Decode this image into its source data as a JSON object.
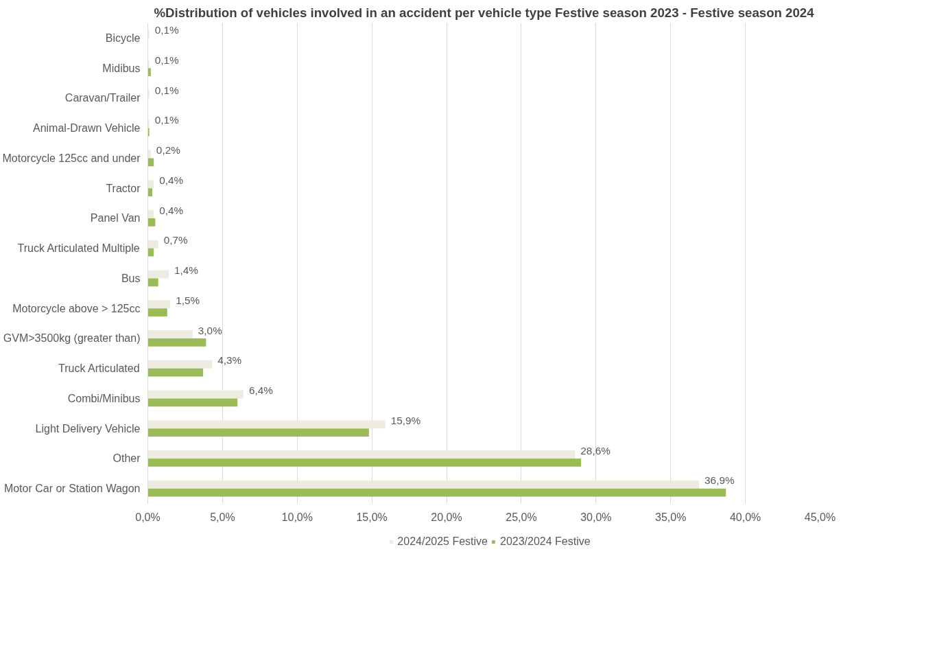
{
  "chart_data": {
    "type": "bar",
    "orientation": "horizontal",
    "title": "%Distribution of vehicles involved in an accident per vehicle type Festive season 2023 - Festive season 2024",
    "categories": [
      "Bicycle",
      "Midibus",
      "Caravan/Trailer",
      "Animal-Drawn Vehicle",
      "Motorcycle 125cc and under",
      "Tractor",
      "Panel Van",
      "Truck Articulated Multiple",
      "Bus",
      "Motorcycle above > 125cc",
      "GVM>3500kg (greater than)",
      "Truck Articulated",
      "Combi/Minibus",
      "Light Delivery Vehicle",
      "Other",
      "Motor Car or Station Wagon"
    ],
    "series": [
      {
        "name": "2024/2025 Festive",
        "color": "#eeece1",
        "values": [
          0.1,
          0.1,
          0.1,
          0.1,
          0.2,
          0.4,
          0.4,
          0.7,
          1.4,
          1.5,
          3.0,
          4.3,
          6.4,
          15.9,
          28.6,
          36.9
        ],
        "value_labels": [
          "0,1%",
          "0,1%",
          "0,1%",
          "0,1%",
          "0,2%",
          "0,4%",
          "0,4%",
          "0,7%",
          "1,4%",
          "1,5%",
          "3,0%",
          "4,3%",
          "6,4%",
          "15,9%",
          "28,6%",
          "36,9%"
        ]
      },
      {
        "name": "2023/2024 Festive",
        "color": "#9bbb59",
        "values": [
          0,
          0.2,
          0,
          0.1,
          0.4,
          0.3,
          0.5,
          0.4,
          0.7,
          1.3,
          3.9,
          3.7,
          6.0,
          14.8,
          29.0,
          38.7
        ]
      }
    ],
    "xlim": [
      0,
      45
    ],
    "xticks": [
      {
        "value": 0,
        "label": "0,0%"
      },
      {
        "value": 5,
        "label": "5,0%"
      },
      {
        "value": 10,
        "label": "10,0%"
      },
      {
        "value": 15,
        "label": "15,0%"
      },
      {
        "value": 20,
        "label": "20,0%"
      },
      {
        "value": 25,
        "label": "25,0%"
      },
      {
        "value": 30,
        "label": "30,0%"
      },
      {
        "value": 35,
        "label": "35,0%"
      },
      {
        "value": 40,
        "label": "40,0%"
      },
      {
        "value": 45,
        "label": "45,0%"
      }
    ],
    "grid": "x",
    "legend": "bottom"
  }
}
